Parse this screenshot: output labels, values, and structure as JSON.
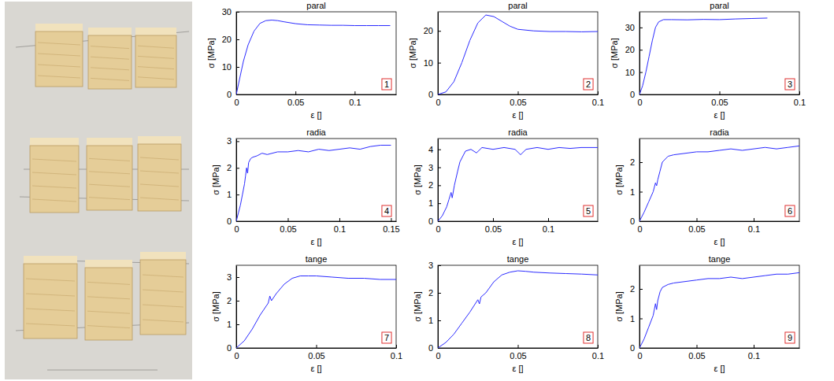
{
  "chart_data": [
    {
      "type": "line",
      "title": "paral",
      "annotation": "1",
      "x_label": "ε []",
      "y_label": "σ [MPa]",
      "color": "#2b2bff",
      "x": [
        0,
        0.003,
        0.006,
        0.01,
        0.015,
        0.02,
        0.025,
        0.03,
        0.035,
        0.04,
        0.05,
        0.06,
        0.07,
        0.08,
        0.09,
        0.1,
        0.11,
        0.12,
        0.13
      ],
      "values": [
        0,
        6,
        12,
        18,
        23,
        25.8,
        26.8,
        27,
        26.8,
        26.4,
        25.7,
        25.3,
        25.2,
        25.1,
        25.1,
        25,
        25,
        25,
        25
      ],
      "xlim": [
        0,
        0.135
      ],
      "xticks": [
        0,
        0.05,
        0.1
      ],
      "ylim": [
        0,
        30
      ],
      "yticks": [
        0,
        10,
        20,
        30
      ]
    },
    {
      "type": "line",
      "title": "paral",
      "annotation": "2",
      "x_label": "ε []",
      "y_label": "σ [MPa]",
      "color": "#2b2bff",
      "x": [
        0,
        0.005,
        0.01,
        0.015,
        0.02,
        0.025,
        0.03,
        0.035,
        0.04,
        0.045,
        0.05,
        0.06,
        0.07,
        0.08,
        0.09,
        0.1
      ],
      "values": [
        0,
        0.8,
        4,
        10,
        17,
        22.5,
        25,
        24.5,
        23,
        21.5,
        20.5,
        20,
        19.8,
        19.8,
        19.7,
        19.8
      ],
      "xlim": [
        0,
        0.1
      ],
      "xticks": [
        0,
        0.05,
        0.1
      ],
      "ylim": [
        0,
        26
      ],
      "yticks": [
        0,
        10,
        20
      ]
    },
    {
      "type": "line",
      "title": "paral",
      "annotation": "3",
      "x_label": "ε []",
      "y_label": "σ [MPa]",
      "color": "#2b2bff",
      "x": [
        0,
        0.002,
        0.004,
        0.006,
        0.008,
        0.01,
        0.012,
        0.015,
        0.02,
        0.03,
        0.04,
        0.05,
        0.06,
        0.07,
        0.08
      ],
      "values": [
        0,
        4,
        10,
        17,
        24,
        30,
        32.5,
        33.5,
        33.5,
        33.4,
        33.6,
        33.5,
        33.8,
        34,
        34.2
      ],
      "xlim": [
        0,
        0.1
      ],
      "xticks": [
        0,
        0.05,
        0.1
      ],
      "ylim": [
        0,
        37
      ],
      "yticks": [
        0,
        10,
        20,
        30
      ]
    },
    {
      "type": "line",
      "title": "radia",
      "annotation": "4",
      "x_label": "ε []",
      "y_label": "σ [MPa]",
      "color": "#2b2bff",
      "x": [
        0,
        0.002,
        0.004,
        0.006,
        0.008,
        0.009,
        0.01,
        0.011,
        0.012,
        0.014,
        0.016,
        0.02,
        0.025,
        0.03,
        0.04,
        0.05,
        0.06,
        0.07,
        0.08,
        0.09,
        0.1,
        0.11,
        0.12,
        0.13,
        0.14,
        0.15
      ],
      "values": [
        0,
        0.3,
        0.6,
        1.0,
        1.4,
        1.7,
        2.0,
        1.8,
        2.2,
        2.35,
        2.4,
        2.45,
        2.55,
        2.5,
        2.6,
        2.6,
        2.65,
        2.6,
        2.7,
        2.65,
        2.7,
        2.75,
        2.7,
        2.8,
        2.85,
        2.85
      ],
      "xlim": [
        0,
        0.155
      ],
      "xticks": [
        0,
        0.05,
        0.1,
        0.15
      ],
      "ylim": [
        0,
        3.1
      ],
      "yticks": [
        0,
        1,
        2,
        3
      ]
    },
    {
      "type": "line",
      "title": "radia",
      "annotation": "5",
      "x_label": "ε []",
      "y_label": "σ [MPa]",
      "color": "#2b2bff",
      "x": [
        0,
        0.004,
        0.008,
        0.01,
        0.012,
        0.013,
        0.015,
        0.018,
        0.02,
        0.025,
        0.03,
        0.035,
        0.04,
        0.05,
        0.06,
        0.07,
        0.075,
        0.08,
        0.09,
        0.1,
        0.11,
        0.12,
        0.13,
        0.14,
        0.145
      ],
      "values": [
        0,
        0.3,
        0.8,
        1.2,
        1.6,
        1.3,
        2.0,
        2.8,
        3.3,
        3.9,
        4.0,
        3.8,
        4.1,
        4.0,
        4.1,
        4.0,
        3.7,
        4.0,
        4.1,
        4.0,
        4.1,
        4.05,
        4.1,
        4.1,
        4.1
      ],
      "xlim": [
        0,
        0.145
      ],
      "xticks": [
        0,
        0.05,
        0.1
      ],
      "ylim": [
        0,
        4.6
      ],
      "yticks": [
        0,
        1,
        2,
        3,
        4
      ]
    },
    {
      "type": "line",
      "title": "radia",
      "annotation": "6",
      "x_label": "ε []",
      "y_label": "σ [MPa]",
      "color": "#2b2bff",
      "x": [
        0,
        0.004,
        0.008,
        0.012,
        0.014,
        0.015,
        0.016,
        0.018,
        0.02,
        0.025,
        0.03,
        0.04,
        0.05,
        0.06,
        0.07,
        0.08,
        0.09,
        0.1,
        0.11,
        0.12,
        0.13,
        0.14
      ],
      "values": [
        0,
        0.3,
        0.65,
        1.0,
        1.3,
        1.2,
        1.4,
        1.7,
        2.0,
        2.2,
        2.25,
        2.3,
        2.35,
        2.35,
        2.4,
        2.45,
        2.4,
        2.45,
        2.5,
        2.45,
        2.5,
        2.55
      ],
      "xlim": [
        0,
        0.14
      ],
      "xticks": [
        0,
        0.05,
        0.1
      ],
      "ylim": [
        0,
        2.8
      ],
      "yticks": [
        0,
        1,
        2
      ]
    },
    {
      "type": "line",
      "title": "tange",
      "annotation": "7",
      "x_label": "ε []",
      "y_label": "σ [MPa]",
      "color": "#2b2bff",
      "x": [
        0,
        0.005,
        0.01,
        0.015,
        0.018,
        0.02,
        0.021,
        0.022,
        0.025,
        0.03,
        0.035,
        0.04,
        0.045,
        0.05,
        0.06,
        0.07,
        0.08,
        0.09,
        0.1
      ],
      "values": [
        0,
        0.3,
        0.8,
        1.4,
        1.7,
        1.9,
        2.2,
        2.0,
        2.3,
        2.7,
        2.95,
        3.05,
        3.05,
        3.05,
        3.0,
        2.95,
        2.95,
        2.9,
        2.9
      ],
      "xlim": [
        0,
        0.1
      ],
      "xticks": [
        0,
        0.05,
        0.1
      ],
      "ylim": [
        0,
        3.5
      ],
      "yticks": [
        0,
        1,
        2,
        3
      ]
    },
    {
      "type": "line",
      "title": "tange",
      "annotation": "8",
      "x_label": "ε []",
      "y_label": "σ [MPa]",
      "color": "#2b2bff",
      "x": [
        0,
        0.005,
        0.01,
        0.015,
        0.02,
        0.025,
        0.026,
        0.027,
        0.03,
        0.035,
        0.04,
        0.045,
        0.05,
        0.055,
        0.06,
        0.07,
        0.08,
        0.09,
        0.1
      ],
      "values": [
        0,
        0.2,
        0.5,
        0.9,
        1.3,
        1.75,
        1.6,
        1.85,
        2.0,
        2.4,
        2.65,
        2.75,
        2.8,
        2.78,
        2.75,
        2.72,
        2.7,
        2.68,
        2.65
      ],
      "xlim": [
        0,
        0.1
      ],
      "xticks": [
        0,
        0.05,
        0.1
      ],
      "ylim": [
        0,
        3
      ],
      "yticks": [
        0,
        1,
        2,
        3
      ]
    },
    {
      "type": "line",
      "title": "tange",
      "annotation": "9",
      "x_label": "ε []",
      "y_label": "σ [MPa]",
      "color": "#2b2bff",
      "x": [
        0,
        0.004,
        0.008,
        0.012,
        0.014,
        0.015,
        0.016,
        0.018,
        0.02,
        0.025,
        0.03,
        0.04,
        0.05,
        0.06,
        0.07,
        0.08,
        0.09,
        0.1,
        0.11,
        0.12,
        0.13,
        0.14
      ],
      "values": [
        0,
        0.3,
        0.7,
        1.1,
        1.5,
        1.3,
        1.6,
        1.9,
        2.05,
        2.15,
        2.2,
        2.25,
        2.3,
        2.35,
        2.35,
        2.4,
        2.35,
        2.4,
        2.45,
        2.5,
        2.5,
        2.55
      ],
      "xlim": [
        0,
        0.14
      ],
      "xticks": [
        0,
        0.05,
        0.1
      ],
      "ylim": [
        0,
        2.8
      ],
      "yticks": [
        0,
        1,
        2
      ]
    }
  ]
}
